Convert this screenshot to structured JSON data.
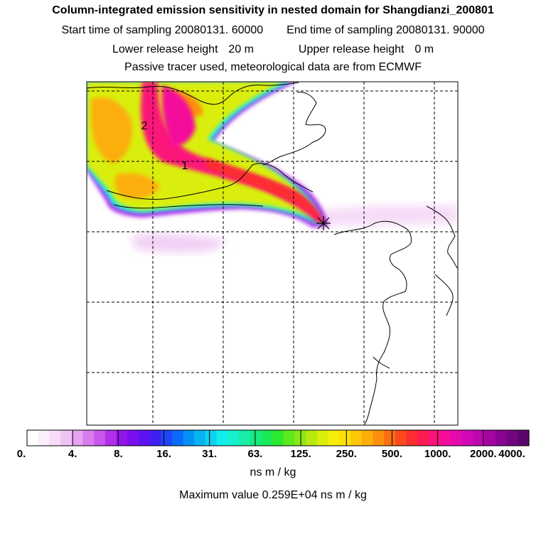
{
  "header": {
    "title": "Column-integrated emission sensitivity in nested domain for Shangdianzi_200801",
    "start_label": "Start time of sampling",
    "start_value": "20080131. 60000",
    "end_label": "End time of sampling",
    "end_value": "20080131. 90000",
    "lower_label": "Lower release height",
    "lower_value": "20 m",
    "upper_label": "Upper release height",
    "upper_value": "0 m",
    "info": "Passive tracer used, meteorological data are from ECMWF"
  },
  "chart_data": {
    "type": "heatmap",
    "title": "Column-integrated emission sensitivity in nested domain for Shangdianzi_200801",
    "units": "ns m / kg",
    "max_value_text": "Maximum value  0.259E+04 ns m / kg",
    "scale_type": "logarithmic",
    "colorbar_ticks": [
      "0.",
      "4.",
      "8.",
      "16.",
      "31.",
      "63.",
      "125.",
      "250.",
      "500.",
      "1000.",
      "2000.",
      "4000."
    ],
    "colorbar_colors": [
      "#ffffff",
      "#fbeefb",
      "#f6dcf7",
      "#efc3f4",
      "#e6a3f0",
      "#d97ced",
      "#c957ec",
      "#b32eeb",
      "#9414ec",
      "#7a10ef",
      "#5e12f2",
      "#3e20f5",
      "#1f45f8",
      "#0a6af8",
      "#0590f5",
      "#08b4f0",
      "#0ed2ee",
      "#12eeea",
      "#16f0cc",
      "#18eea8",
      "#16ea80",
      "#1ae855",
      "#2ee82e",
      "#5ee81e",
      "#8ce812",
      "#b6ea0e",
      "#daee0a",
      "#f5ee08",
      "#fbe006",
      "#fcc806",
      "#fcae08",
      "#fc900c",
      "#fc6e12",
      "#fc4a1c",
      "#fc2e30",
      "#fc1c52",
      "#fc127a",
      "#f40c9a",
      "#e40aae",
      "#d208b6",
      "#bc08b0",
      "#a406a2",
      "#8a0492",
      "#720680",
      "#5c066c"
    ],
    "plume_markers": [
      "1",
      "2"
    ],
    "receptor_marker": "*",
    "gridlines": "dashed"
  }
}
